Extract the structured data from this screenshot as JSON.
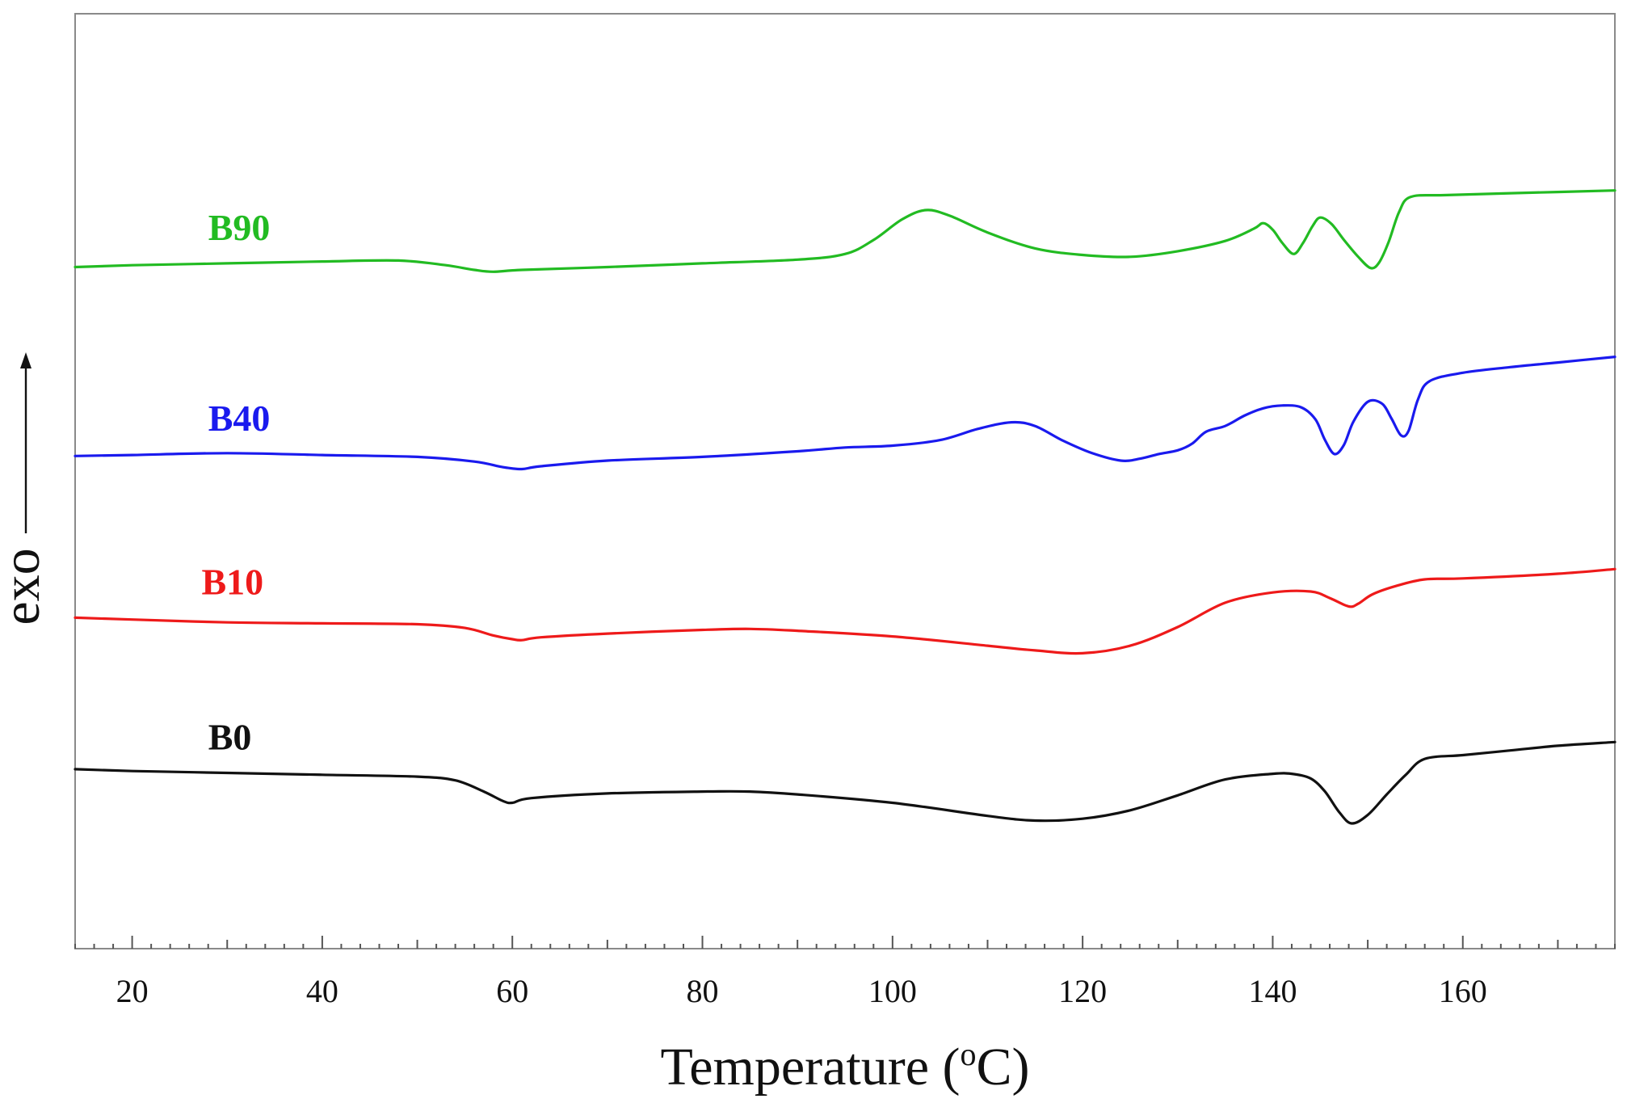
{
  "chart_data": {
    "type": "line",
    "title": "",
    "xlabel": "Temperature (",
    "xlabel_superscript": "o",
    "xlabel_unit": "C)",
    "ylabel": "exo",
    "xlim": [
      14,
      176
    ],
    "ylim": [
      0,
      100
    ],
    "grid": false,
    "legend": "inline labels",
    "x_ticks": [
      20,
      40,
      60,
      80,
      100,
      120,
      140,
      160
    ],
    "x_tick_labels": [
      "20",
      "40",
      "60",
      "80",
      "100",
      "120",
      "140",
      "160"
    ],
    "series": [
      {
        "name": "B90",
        "label": "B90",
        "color": "#22bb22",
        "label_x": 28,
        "label_y": 75.8,
        "points": [
          [
            14,
            72.9
          ],
          [
            20,
            73.1
          ],
          [
            30,
            73.3
          ],
          [
            40,
            73.5
          ],
          [
            48,
            73.6
          ],
          [
            53,
            73.1
          ],
          [
            56,
            72.6
          ],
          [
            58,
            72.4
          ],
          [
            61,
            72.6
          ],
          [
            70,
            72.9
          ],
          [
            80,
            73.3
          ],
          [
            90,
            73.7
          ],
          [
            95,
            74.3
          ],
          [
            98,
            75.8
          ],
          [
            101,
            78.0
          ],
          [
            103.5,
            79.0
          ],
          [
            106,
            78.4
          ],
          [
            110,
            76.6
          ],
          [
            115,
            74.9
          ],
          [
            120,
            74.2
          ],
          [
            125,
            74.0
          ],
          [
            130,
            74.6
          ],
          [
            135,
            75.7
          ],
          [
            138,
            77.0
          ],
          [
            139,
            77.6
          ],
          [
            140,
            76.9
          ],
          [
            141,
            75.5
          ],
          [
            142.2,
            74.3
          ],
          [
            143.2,
            75.5
          ],
          [
            144.2,
            77.3
          ],
          [
            145,
            78.2
          ],
          [
            146.2,
            77.5
          ],
          [
            147.5,
            75.8
          ],
          [
            149,
            74.0
          ],
          [
            150.3,
            72.8
          ],
          [
            151.2,
            73.4
          ],
          [
            152.2,
            75.6
          ],
          [
            153.3,
            78.8
          ],
          [
            154.5,
            80.4
          ],
          [
            158,
            80.6
          ],
          [
            165,
            80.8
          ],
          [
            176,
            81.1
          ]
        ]
      },
      {
        "name": "B40",
        "label": "B40",
        "color": "#1a1aee",
        "label_x": 28,
        "label_y": 55.4,
        "points": [
          [
            14,
            52.7
          ],
          [
            20,
            52.8
          ],
          [
            30,
            53.0
          ],
          [
            40,
            52.8
          ],
          [
            50,
            52.6
          ],
          [
            56,
            52.1
          ],
          [
            59,
            51.5
          ],
          [
            61,
            51.3
          ],
          [
            63,
            51.6
          ],
          [
            70,
            52.2
          ],
          [
            80,
            52.6
          ],
          [
            90,
            53.2
          ],
          [
            95,
            53.6
          ],
          [
            100,
            53.8
          ],
          [
            105,
            54.4
          ],
          [
            109,
            55.6
          ],
          [
            112.5,
            56.3
          ],
          [
            115,
            55.9
          ],
          [
            118,
            54.3
          ],
          [
            121,
            53.0
          ],
          [
            124,
            52.2
          ],
          [
            126,
            52.4
          ],
          [
            128,
            52.9
          ],
          [
            130,
            53.3
          ],
          [
            131.5,
            54.0
          ],
          [
            133,
            55.3
          ],
          [
            135,
            55.9
          ],
          [
            137,
            57.0
          ],
          [
            139,
            57.8
          ],
          [
            141,
            58.1
          ],
          [
            143,
            57.9
          ],
          [
            144.5,
            56.6
          ],
          [
            145.5,
            54.4
          ],
          [
            146.5,
            52.9
          ],
          [
            147.5,
            53.9
          ],
          [
            148.5,
            56.4
          ],
          [
            150,
            58.5
          ],
          [
            151.5,
            58.3
          ],
          [
            152.5,
            56.7
          ],
          [
            153.5,
            54.9
          ],
          [
            154.3,
            55.4
          ],
          [
            155.3,
            58.8
          ],
          [
            156.5,
            60.7
          ],
          [
            160,
            61.6
          ],
          [
            165,
            62.2
          ],
          [
            170,
            62.7
          ],
          [
            176,
            63.3
          ]
        ]
      },
      {
        "name": "B10",
        "label": "B10",
        "color": "#ee1a1a",
        "label_x": 27.3,
        "label_y": 37.9,
        "points": [
          [
            14,
            35.4
          ],
          [
            20,
            35.2
          ],
          [
            30,
            34.9
          ],
          [
            40,
            34.8
          ],
          [
            50,
            34.7
          ],
          [
            55,
            34.3
          ],
          [
            58,
            33.5
          ],
          [
            60,
            33.1
          ],
          [
            61,
            33.0
          ],
          [
            63,
            33.3
          ],
          [
            70,
            33.7
          ],
          [
            80,
            34.1
          ],
          [
            85,
            34.2
          ],
          [
            90,
            34.0
          ],
          [
            100,
            33.4
          ],
          [
            110,
            32.4
          ],
          [
            115,
            31.9
          ],
          [
            120,
            31.6
          ],
          [
            125,
            32.4
          ],
          [
            130,
            34.4
          ],
          [
            135,
            37.0
          ],
          [
            140,
            38.1
          ],
          [
            144,
            38.2
          ],
          [
            146,
            37.5
          ],
          [
            148,
            36.6
          ],
          [
            149,
            36.9
          ],
          [
            150.5,
            37.9
          ],
          [
            153,
            38.8
          ],
          [
            156,
            39.5
          ],
          [
            160,
            39.6
          ],
          [
            170,
            40.1
          ],
          [
            176,
            40.6
          ]
        ]
      },
      {
        "name": "B0",
        "label": "B0",
        "color": "#111111",
        "label_x": 28,
        "label_y": 21.3,
        "points": [
          [
            14,
            19.2
          ],
          [
            20,
            19.0
          ],
          [
            30,
            18.8
          ],
          [
            40,
            18.6
          ],
          [
            50,
            18.4
          ],
          [
            54,
            18.0
          ],
          [
            57,
            16.8
          ],
          [
            59,
            15.8
          ],
          [
            60,
            15.6
          ],
          [
            62,
            16.1
          ],
          [
            70,
            16.6
          ],
          [
            80,
            16.8
          ],
          [
            85,
            16.8
          ],
          [
            90,
            16.5
          ],
          [
            100,
            15.6
          ],
          [
            110,
            14.2
          ],
          [
            115,
            13.7
          ],
          [
            120,
            13.9
          ],
          [
            125,
            14.8
          ],
          [
            130,
            16.4
          ],
          [
            135,
            18.1
          ],
          [
            140,
            18.7
          ],
          [
            142,
            18.7
          ],
          [
            144,
            18.2
          ],
          [
            145.5,
            16.8
          ],
          [
            147,
            14.6
          ],
          [
            148.3,
            13.4
          ],
          [
            150,
            14.3
          ],
          [
            152,
            16.5
          ],
          [
            154,
            18.6
          ],
          [
            156,
            20.3
          ],
          [
            160,
            20.7
          ],
          [
            165,
            21.2
          ],
          [
            170,
            21.7
          ],
          [
            176,
            22.1
          ]
        ]
      }
    ]
  },
  "colors": {
    "axis": "#8a8a8a",
    "text": "#111111",
    "background": "#ffffff"
  },
  "icons": {
    "y_axis_arrow": "arrow-up-icon"
  }
}
